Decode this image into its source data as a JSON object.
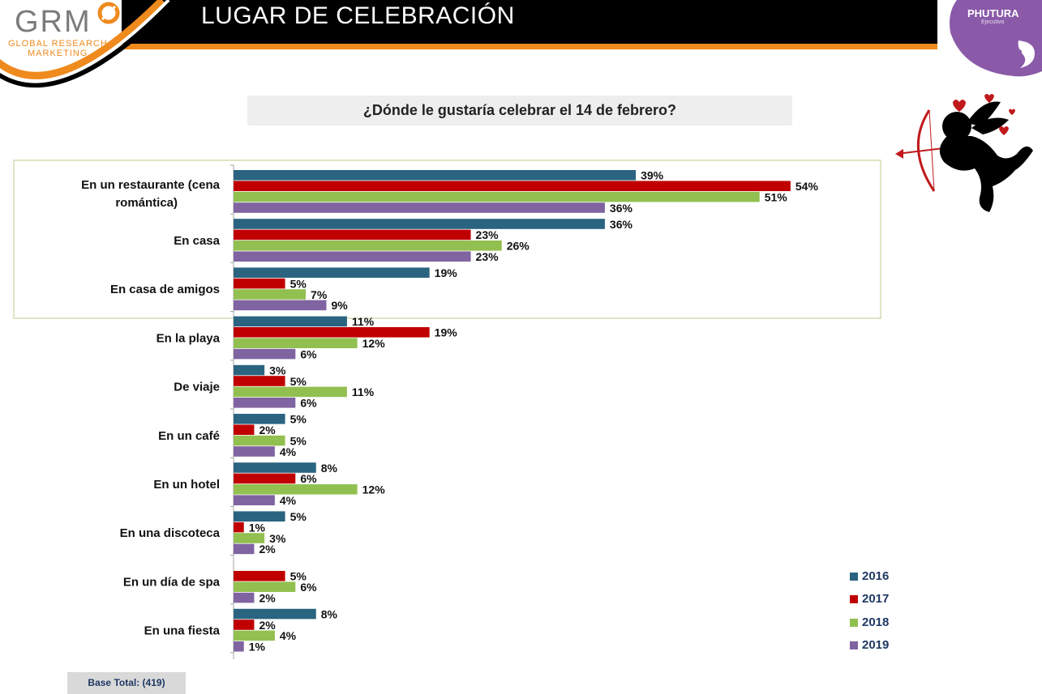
{
  "header": {
    "title": "LUGAR DE CELEBRACIÓN",
    "grm_logo_text": "GRM",
    "grm_line1": "GLOBAL RESEARCH",
    "grm_line2": "MARKETING",
    "phutura_name": "PHUTURA",
    "phutura_sub": "Ejecutivo"
  },
  "base_label": "Base Total: (419)",
  "colors": {
    "s2016": "#2a6480",
    "s2017": "#c00000",
    "s2018": "#92c050",
    "s2019": "#8063a1",
    "bar_black": "#000000",
    "bar_orange": "#ef8a1e",
    "phutura_purple": "#8a5aa8"
  },
  "chart_data": {
    "type": "bar",
    "orientation": "horizontal",
    "title": "¿Dónde le gustaría celebrar el 14 de febrero?",
    "categories": [
      "En un restaurante (cena romántica)",
      "En casa",
      "En casa de amigos",
      "En la playa",
      "De viaje",
      "En un café",
      "En un hotel",
      "En una discoteca",
      "En un día de spa",
      "En una fiesta"
    ],
    "series": [
      {
        "name": "2016",
        "values": [
          39,
          36,
          19,
          11,
          3,
          5,
          8,
          5,
          null,
          8
        ]
      },
      {
        "name": "2017",
        "values": [
          54,
          23,
          5,
          19,
          5,
          2,
          6,
          1,
          5,
          2
        ]
      },
      {
        "name": "2018",
        "values": [
          51,
          26,
          7,
          12,
          11,
          5,
          12,
          3,
          6,
          4
        ]
      },
      {
        "name": "2019",
        "values": [
          36,
          23,
          9,
          6,
          6,
          4,
          4,
          2,
          2,
          1
        ]
      }
    ],
    "value_suffix": "%",
    "xlim": [
      0,
      54
    ],
    "legend_position": "bottom-right",
    "highlighted_categories": [
      "En un restaurante (cena romántica)",
      "En casa",
      "En casa de amigos"
    ]
  }
}
